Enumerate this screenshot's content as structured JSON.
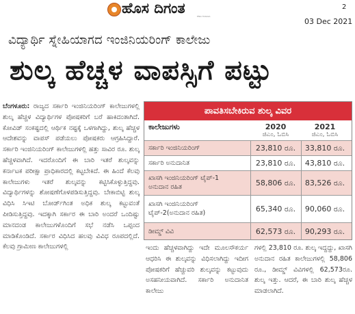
{
  "masthead": {
    "logo_text": "ಹೊಸ ದಿಗಂತ",
    "logo_sub": "ENG HUGGIA",
    "page_number": "2",
    "date": "03 Dec 2021"
  },
  "article": {
    "subheadline": "ವಿದ್ಯಾರ್ಥಿ ಸ್ನೇಹಿಯಾಗದ ಇಂಜಿನಿಯರಿಂಗ್ ಕಾಲೇಜು",
    "headline": "ಶುಲ್ಕ ಹೆಚ್ಚಳ ವಾಪಸ್ಸಿಗೆ ಪಟ್ಟು",
    "dateline": "ಬೆಂಗಳೂರು:",
    "left_column": "ರಾಜ್ಯದ ಸರ್ಕಾರಿ ಇಂಜಿನಿಯರಿಂಗ್ ಕಾಲೇಜುಗಳಲ್ಲಿ ಶುಲ್ಕ ಹೆಚ್ಚಳ ವಿದ್ಯಾರ್ಥಿಗಳ ಪೋಷಕರಿಗೆ ಬರೆ ಹಾಕಿದಂತಾಗಿದೆ. ಕೋವಿಡ್ ಸಂಕಷ್ಟದಲ್ಲಿ ಆರ್ಥಿಕ ನಷ್ಟಕ್ಕೆ ಒಳಗಾಗಿದ್ದು, ಶುಲ್ಕ ಹೆಚ್ಚಳ ಆದೇಶವನ್ನು ವಾಪಸ್ ಪಡೆಯಲು ಪೋಷಕರು ಆಗ್ರಹಿಸಿದ್ದಾರೆ. ಸರ್ಕಾರಿ ಇಂಜಿನಿಯರಿಂಗ್ ಕಾಲೇಜುಗಳಲ್ಲಿ ಹತ್ತು ಸಾವಿರ ರೂ. ಶುಲ್ಕ ಹೆಚ್ಚಳವಾಗಿದೆ. ಇದರೊಂದಿಗೆ ಈ ಬಾರಿ ಇತರೆ ಶುಲ್ಕವನ್ನು ಕರ್ನಾಟಕ ಪರೀಕ್ಷಾ ಪ್ರಾಧಿಕಾರದಲ್ಲಿ ಕಟ್ಟಬೇಕಿದೆ. ಈ ಹಿಂದೆ ಕೆಲವು ಕಾಲೇಜುಗಳು ಇತರೆ ಶುಲ್ಕವನ್ನು ಕಟ್ಟಿಸಿಕೊಳ್ಳುತ್ತಿದ್ದವು. ವಿದ್ಯಾರ್ಥಿಗಳನ್ನು ಶೋಷಣೆಗೊಳಪಡಿಸುತ್ತಿದ್ದವು. ಬೇಕಾಬಿಟ್ಟಿ ಶುಲ್ಕ ವಿಧಿಸಿ ಸಿಇಟಿ ಬೋರ್ಡ್‌ಗಿಂತ ಅಧಿಕ ಶುಲ್ಕ ಕಟ್ಟುವಂತೆ ಪೀಡಿಸುತ್ತಿದ್ದವು. ಇದಕ್ಕಾಗಿ ಸರ್ಕಾರ ಈ ಬಾರಿ ಅಂದರೆ ಒಂದಿಷ್ಟು ಮಾನದಂಡ ಕಾಲೇಜುಗಳೊಂದಿಗೆ ಸಭೆ ನಡೆಸಿ ಒಪ್ಪಂದ ಮಾಡಿಕೊಂಡಿದೆ. ಸರ್ಕಾರ ವಿಧಿಸಿದ ಹಲವು ವಿವಿಧ ರೂಪದಲ್ಲಿದೆ. ಕೆಲವು ಗ್ರಾಮೀಣ ಕಾಲೇಜುಗಳಲ್ಲಿ",
    "middle_column": "ಇಂದು ಹೆಚ್ಚಳವಾಗಿದ್ದು ಇದೇ ಮೂಲಸೌಕರ್ಯ ಆಧರಿಸಿ ಈ ಶುಲ್ಕವನ್ನು ವಿಧಿಸಲಾಗಿದ್ದು ಇದೀಗ ಪೋಷಕರಿಗೆ ಹೆಚ್ಚುವರಿ ಶುಲ್ಕವನ್ನು ಕಟ್ಟುವುದು ಅಸಹನೀಯವಾಗಿದೆ. ಸರ್ಕಾರಿ ಅನುದಾನಿತ ಕಾಲೇಜು",
    "right_column": "ಗಳಲ್ಲಿ 23,810 ರೂ. ಶುಲ್ಕ ಇದ್ದದ್ದು, ಖಾಸಗಿ ಅನುದಾನ ರಹಿತ ಕಾಲೇಜುಗಳಲ್ಲಿ 58,806 ರೂ., ಡೀಮ್ಡ್ ವಿವಿಗಳಲ್ಲಿ 62,573ರೂ. ಶುಲ್ಕ ಇತ್ತು. ಆದರೆ, ಈ ಬಾರಿ ಶುಲ್ಕ ಹೆಚ್ಚಳ ಮಾಡಲಾಗಿದೆ."
  },
  "fee_table": {
    "title": "ಪಾವತಿಸಬೇಕಿರುವ ಶುಲ್ಕ ವಿವರ",
    "column_label": "ಕಾಲೇಜುಗಳು",
    "years": [
      "2020",
      "2021"
    ],
    "year_subs": [
      "ಜಿಎಂ, ಓಬಿಸಿ",
      "ಜಿಎಂ, ಓಬಿಸಿ"
    ],
    "rows": [
      {
        "label": "ಸರ್ಕಾರಿ ಇಂಜಿನಿಯರಿಂಗ್",
        "v2020": "23,810 ರೂ.",
        "v2021": "33,810 ರೂ."
      },
      {
        "label": "ಸರ್ಕಾರಿ ಅನುದಾನಿತ",
        "v2020": "23,810 ರೂ.",
        "v2021": "43,810 ರೂ."
      },
      {
        "label": "ಖಾಸಗಿ ಇಂಜಿನಿಯರಿಂಗ್ ಟೈಪ್-1 ಅನುದಾನ ರಹಿತ",
        "v2020": "58,806 ರೂ.",
        "v2021": "83,526 ರೂ."
      },
      {
        "label": "ಖಾಸಗಿ ಇಂಜಿನಿಯರಿಂಗ್ ಟೈಪ್-2(ಅನುದಾನ ರಹಿತ)",
        "v2020": "65,340 ರೂ.",
        "v2021": "90,060 ರೂ."
      },
      {
        "label": "ಡೀಮ್ಡ್ ವಿವಿ",
        "v2020": "62,573 ರೂ.",
        "v2021": "90,293 ರೂ."
      }
    ]
  }
}
